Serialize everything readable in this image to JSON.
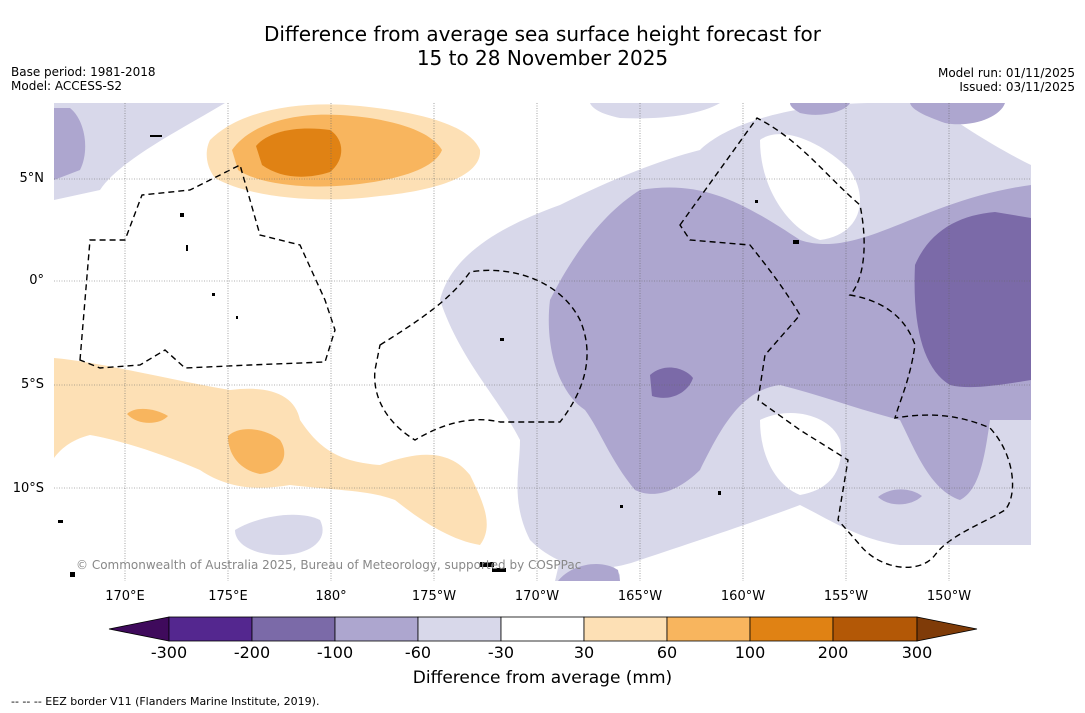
{
  "title_line1": "Difference from average sea surface height forecast for",
  "title_line2": "15 to 28 November 2025",
  "base_period": "Base period: 1981-2018",
  "model": "Model: ACCESS-S2",
  "model_run": "Model run: 01/11/2025",
  "issued": "Issued: 03/11/2025",
  "copyright": "© Commonwealth of Australia 2025, Bureau of Meteorology, supported by COSPPac",
  "lat_labels": [
    "5°N",
    "0°",
    "5°S",
    "10°S"
  ],
  "lon_labels": [
    "170°E",
    "175°E",
    "180°",
    "175°W",
    "170°W",
    "165°W",
    "160°W",
    "155°W",
    "150°W"
  ],
  "colorbar": {
    "ticks": [
      "-300",
      "-200",
      "-100",
      "-60",
      "-30",
      "30",
      "60",
      "100",
      "200",
      "300"
    ],
    "colors": [
      "#54278f",
      "#7b6aa8",
      "#ada6cf",
      "#d8d8ea",
      "#ffffff",
      "#fde0b5",
      "#f8b55e",
      "#e08214",
      "#b35806"
    ],
    "under_color": "#3f0a5c",
    "over_color": "#7f3b08",
    "label": "Difference from average (mm)"
  },
  "footnote": "--  --  -- EEZ border V11 (Flanders Marine Institute, 2019)."
}
